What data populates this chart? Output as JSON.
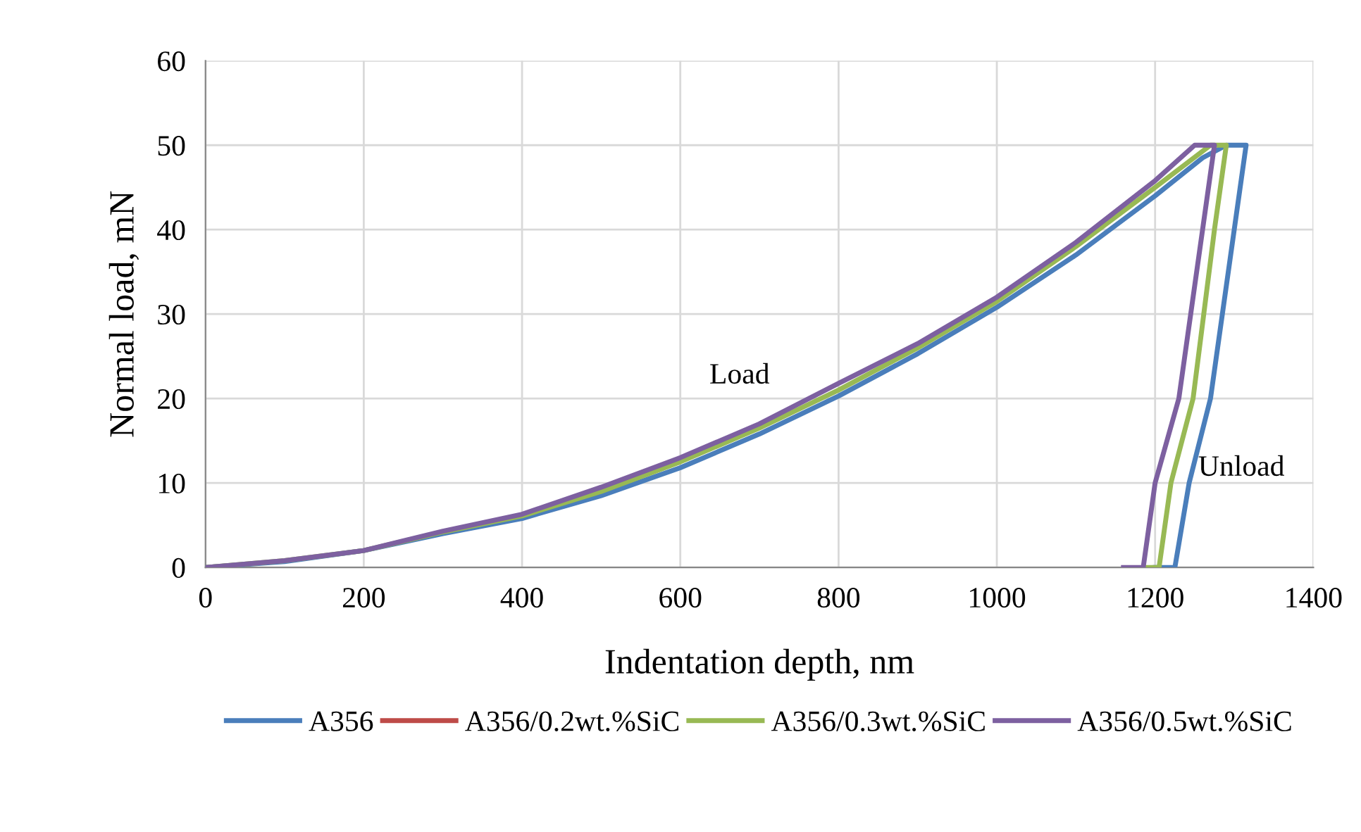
{
  "chart_data": {
    "type": "line",
    "xlabel": "Indentation depth, nm",
    "ylabel": "Normal load, mN",
    "xlim": [
      0,
      1400
    ],
    "xticks": [
      0,
      200,
      400,
      600,
      800,
      1000,
      1200,
      1400
    ],
    "ylim": [
      0,
      60
    ],
    "yticks": [
      0,
      10,
      20,
      30,
      40,
      50,
      60
    ],
    "grid": true,
    "legend": "bottom",
    "marker": "none",
    "line_style": "solid",
    "annotations": [
      "Load",
      "Unload"
    ],
    "series": [
      {
        "name": "A356",
        "color": "#4a7ebb",
        "x": [
          0,
          100,
          200,
          300,
          400,
          500,
          600,
          700,
          800,
          900,
          1000,
          1100,
          1200,
          1260,
          1290,
          1315,
          1300,
          1270,
          1243,
          1225,
          1200
        ],
        "values": [
          0,
          0.7,
          2,
          4,
          5.8,
          8.5,
          11.8,
          15.8,
          20.3,
          25.3,
          30.8,
          37,
          44,
          48.5,
          50,
          50,
          40,
          20,
          10,
          0,
          0
        ]
      },
      {
        "name": "A356/0.2wt.%SiC",
        "color": "#be4b48"
      },
      {
        "name": "A356/0.3wt.%SiC",
        "color": "#98b954",
        "x": [
          0,
          100,
          200,
          300,
          400,
          500,
          600,
          700,
          800,
          900,
          1000,
          1100,
          1200,
          1270,
          1290,
          1275,
          1248,
          1220,
          1205,
          1190
        ],
        "values": [
          0,
          0.8,
          2,
          4.2,
          6.1,
          9,
          12.5,
          16.5,
          21,
          26,
          31.5,
          38,
          45,
          50,
          50,
          40,
          20,
          10,
          0,
          0
        ]
      },
      {
        "name": "A356/0.5wt.%SiC",
        "color": "#7d60a0",
        "x": [
          0,
          100,
          200,
          300,
          400,
          500,
          600,
          700,
          800,
          900,
          1000,
          1100,
          1200,
          1250,
          1275,
          1260,
          1230,
          1200,
          1185,
          1160
        ],
        "values": [
          0,
          0.8,
          2,
          4.3,
          6.3,
          9.5,
          13,
          17,
          21.8,
          26.5,
          32,
          38.5,
          45.8,
          50,
          50,
          40,
          20,
          10,
          0,
          0
        ]
      }
    ]
  }
}
